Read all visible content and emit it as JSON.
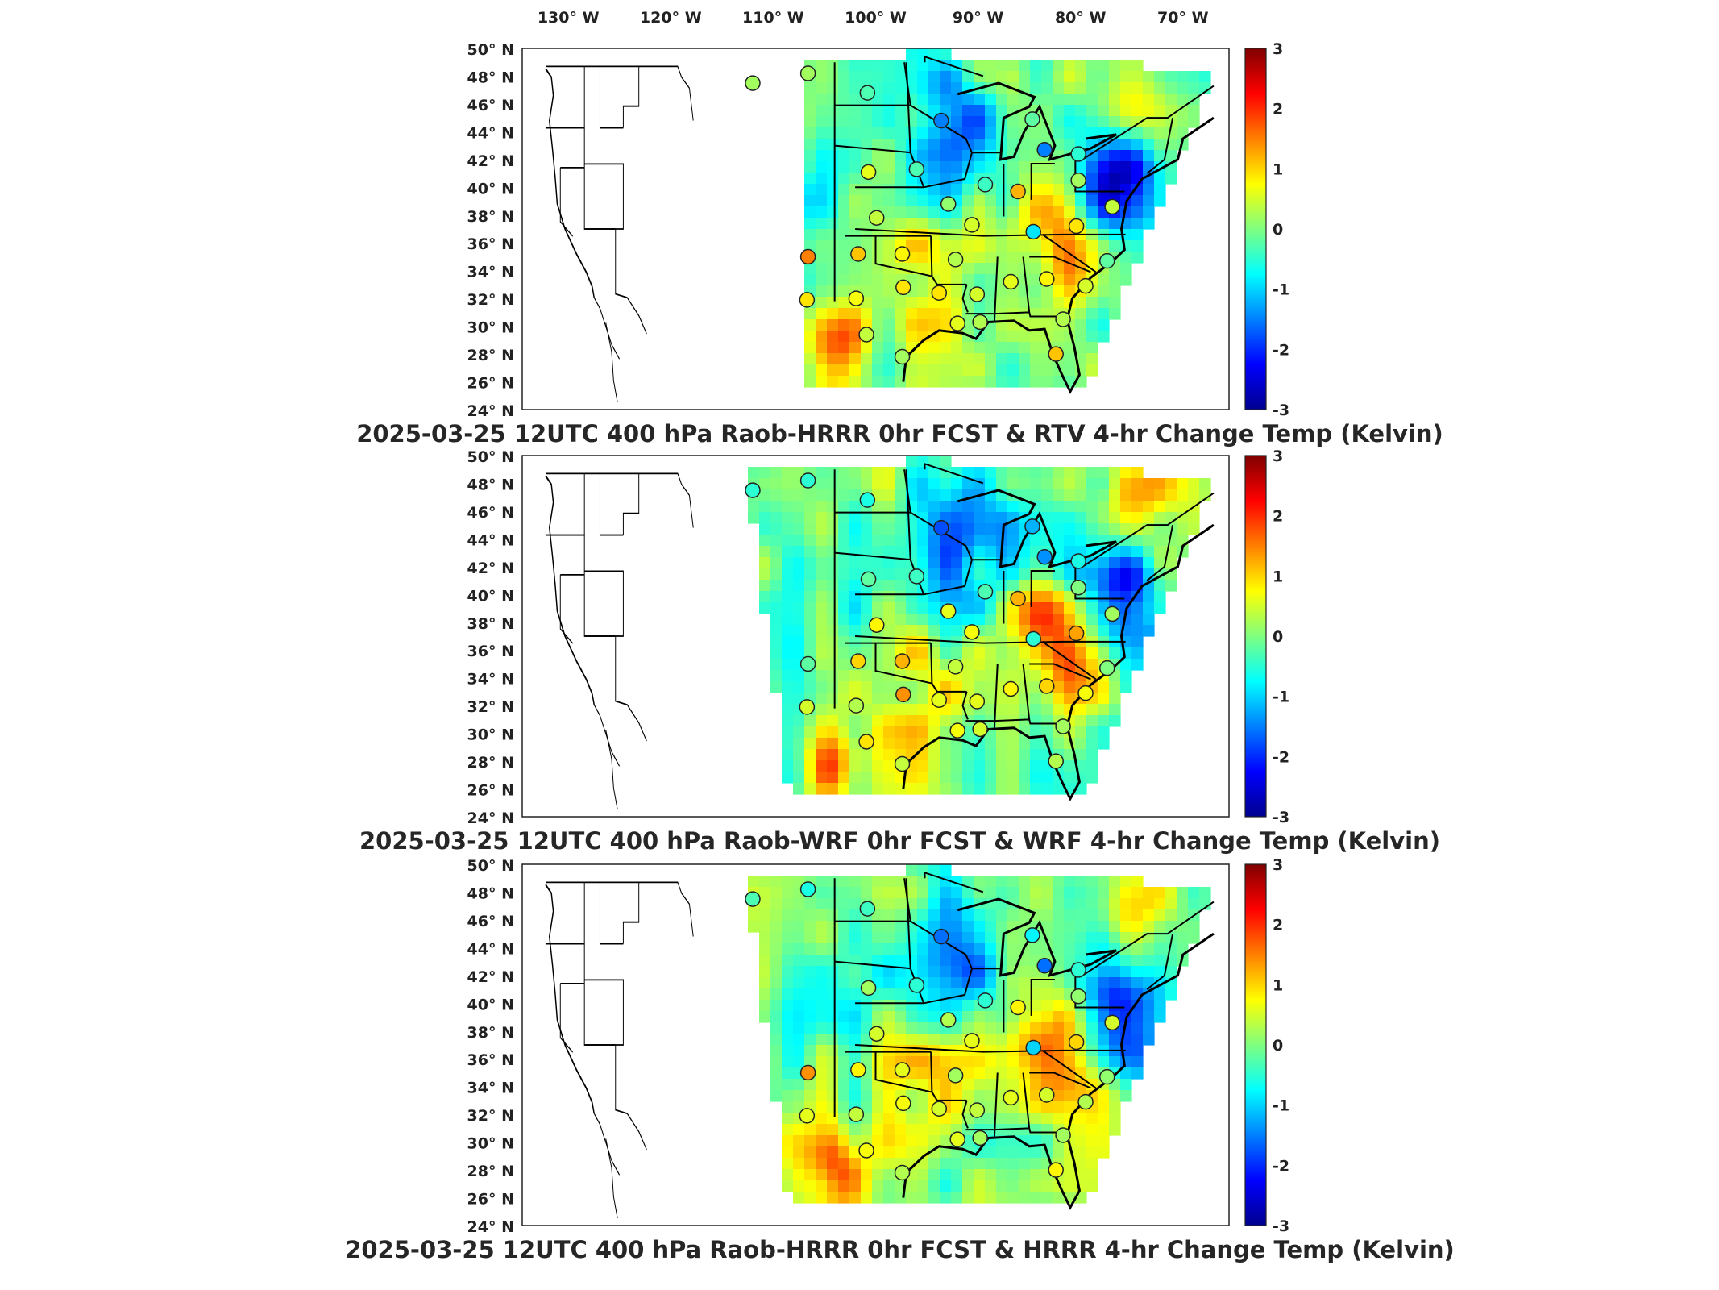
{
  "panels": [
    {
      "title": "2025-03-25 12UTC 400 hPa Raob-HRRR 0hr FCST & RTV 4-hr Change Temp (Kelvin)"
    },
    {
      "title": "2025-03-25 12UTC 400 hPa Raob-WRF 0hr FCST & WRF 4-hr Change Temp (Kelvin)"
    },
    {
      "title": "2025-03-25 12UTC 400 hPa Raob-HRRR 0hr FCST & HRRR 4-hr Change Temp (Kelvin)"
    }
  ],
  "lon_labels": [
    "130° W",
    "120° W",
    "110° W",
    "100° W",
    "90° W",
    "80° W",
    "70° W"
  ],
  "lon_values": [
    -130,
    -120,
    -110,
    -100,
    -90,
    -80,
    -70
  ],
  "lat_labels": [
    "50° N",
    "48° N",
    "46° N",
    "44° N",
    "42° N",
    "40° N",
    "38° N",
    "36° N",
    "34° N",
    "32° N",
    "30° N",
    "28° N",
    "26° N",
    "24° N"
  ],
  "lat_values": [
    50,
    48,
    46,
    44,
    42,
    40,
    38,
    36,
    34,
    32,
    30,
    28,
    26,
    24
  ],
  "colorbar": {
    "ticks": [
      "3",
      "2",
      "1",
      "0",
      "-1",
      "-2",
      "-3"
    ],
    "tick_values": [
      3,
      2,
      1,
      0,
      -1,
      -2,
      -3
    ],
    "range": [
      -3,
      3
    ],
    "colormap": "jet"
  },
  "map_extent": {
    "lon": [
      -134.5,
      -65.5
    ],
    "lat": [
      24,
      50
    ]
  },
  "chart_data": {
    "type": "scatter",
    "stations": [
      {
        "lon": -112.0,
        "lat": 47.5,
        "values": [
          0.2,
          -0.5,
          -0.3
        ]
      },
      {
        "lon": -106.6,
        "lat": 48.2,
        "values": [
          0.2,
          -0.5,
          -0.6
        ]
      },
      {
        "lon": -100.8,
        "lat": 46.8,
        "values": [
          -0.3,
          -0.6,
          -0.4
        ]
      },
      {
        "lon": -93.6,
        "lat": 44.8,
        "values": [
          -1.5,
          -1.8,
          -1.6
        ]
      },
      {
        "lon": -84.7,
        "lat": 44.9,
        "values": [
          -0.2,
          -1.2,
          -0.8
        ]
      },
      {
        "lon": -83.5,
        "lat": 42.7,
        "values": [
          -1.5,
          -1.4,
          -1.6
        ]
      },
      {
        "lon": -80.2,
        "lat": 42.4,
        "values": [
          -0.5,
          -0.6,
          -0.5
        ]
      },
      {
        "lon": -100.7,
        "lat": 41.1,
        "values": [
          0.6,
          -0.2,
          0.2
        ]
      },
      {
        "lon": -96.0,
        "lat": 41.3,
        "values": [
          -0.3,
          -0.4,
          -0.5
        ]
      },
      {
        "lon": -89.3,
        "lat": 40.2,
        "values": [
          -0.4,
          -0.3,
          -0.5
        ]
      },
      {
        "lon": -86.1,
        "lat": 39.7,
        "values": [
          1.2,
          1.2,
          0.8
        ]
      },
      {
        "lon": -80.2,
        "lat": 40.5,
        "values": [
          0.2,
          0.0,
          0.1
        ]
      },
      {
        "lon": -76.9,
        "lat": 38.6,
        "values": [
          0.4,
          0.2,
          0.5
        ]
      },
      {
        "lon": -99.9,
        "lat": 37.8,
        "values": [
          0.4,
          0.8,
          0.5
        ]
      },
      {
        "lon": -92.9,
        "lat": 38.8,
        "values": [
          0.1,
          0.6,
          0.3
        ]
      },
      {
        "lon": -90.6,
        "lat": 37.3,
        "values": [
          0.5,
          0.7,
          0.6
        ]
      },
      {
        "lon": -84.6,
        "lat": 36.8,
        "values": [
          -0.9,
          -0.5,
          -1.0
        ]
      },
      {
        "lon": -80.4,
        "lat": 37.2,
        "values": [
          0.9,
          1.3,
          1.0
        ]
      },
      {
        "lon": -106.6,
        "lat": 35.0,
        "values": [
          1.5,
          -0.2,
          1.4
        ]
      },
      {
        "lon": -101.7,
        "lat": 35.2,
        "values": [
          1.1,
          1.0,
          0.8
        ]
      },
      {
        "lon": -97.4,
        "lat": 35.2,
        "values": [
          0.8,
          1.2,
          0.6
        ]
      },
      {
        "lon": -92.2,
        "lat": 34.8,
        "values": [
          0.3,
          0.4,
          0.2
        ]
      },
      {
        "lon": -86.8,
        "lat": 33.2,
        "values": [
          0.6,
          0.8,
          0.6
        ]
      },
      {
        "lon": -83.3,
        "lat": 33.4,
        "values": [
          0.8,
          1.0,
          0.5
        ]
      },
      {
        "lon": -79.5,
        "lat": 32.9,
        "values": [
          0.5,
          0.7,
          0.3
        ]
      },
      {
        "lon": -77.4,
        "lat": 34.7,
        "values": [
          -0.2,
          0.0,
          0.1
        ]
      },
      {
        "lon": -90.1,
        "lat": 32.3,
        "values": [
          0.5,
          0.6,
          0.4
        ]
      },
      {
        "lon": -93.8,
        "lat": 32.4,
        "values": [
          0.9,
          0.6,
          0.5
        ]
      },
      {
        "lon": -97.3,
        "lat": 32.8,
        "values": [
          0.9,
          1.4,
          0.7
        ]
      },
      {
        "lon": -101.9,
        "lat": 32.0,
        "values": [
          0.7,
          0.3,
          0.4
        ]
      },
      {
        "lon": -106.7,
        "lat": 31.9,
        "values": [
          0.9,
          0.5,
          0.6
        ]
      },
      {
        "lon": -92.0,
        "lat": 30.2,
        "values": [
          0.6,
          0.7,
          0.6
        ]
      },
      {
        "lon": -89.8,
        "lat": 30.3,
        "values": [
          0.3,
          0.5,
          0.2
        ]
      },
      {
        "lon": -81.7,
        "lat": 30.5,
        "values": [
          0.3,
          0.2,
          0.2
        ]
      },
      {
        "lon": -100.9,
        "lat": 29.4,
        "values": [
          0.4,
          0.9,
          0.7
        ]
      },
      {
        "lon": -97.4,
        "lat": 27.8,
        "values": [
          0.2,
          0.4,
          0.3
        ]
      },
      {
        "lon": -82.4,
        "lat": 28.0,
        "values": [
          1.1,
          0.3,
          0.8
        ]
      }
    ]
  }
}
